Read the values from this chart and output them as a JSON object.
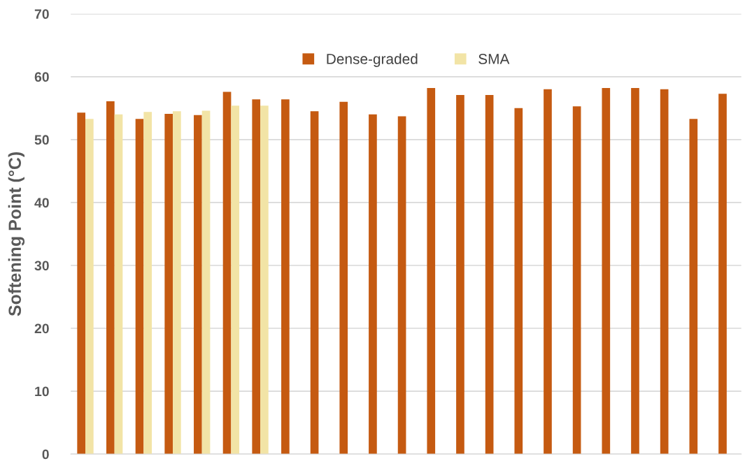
{
  "chart_data": {
    "type": "bar",
    "ylabel": "Softening Point (°C)",
    "categories": [
      null,
      null,
      null,
      null,
      null,
      null,
      null,
      null,
      null,
      null,
      null,
      null,
      null,
      null,
      null,
      null,
      null,
      null,
      null,
      null,
      null,
      null,
      null
    ],
    "series": [
      {
        "name": "Dense-graded",
        "color": "#c55a11",
        "values": [
          54.3,
          56.1,
          53.3,
          54.1,
          53.9,
          57.6,
          56.4,
          56.4,
          54.5,
          56.0,
          54.0,
          53.7,
          58.2,
          57.1,
          57.1,
          55.0,
          58.0,
          55.3,
          58.2,
          58.2,
          58.0,
          53.3,
          57.3
        ]
      },
      {
        "name": "SMA",
        "color": "#f2e4a6",
        "values": [
          53.3,
          54.0,
          54.4,
          54.5,
          54.6,
          55.4,
          55.4,
          null,
          null,
          null,
          null,
          null,
          null,
          null,
          null,
          null,
          null,
          null,
          null,
          null,
          null,
          null,
          null
        ]
      }
    ],
    "ylim": [
      0,
      70
    ],
    "yticks": [
      0,
      10,
      20,
      30,
      40,
      50,
      60,
      70
    ],
    "grid": "y",
    "legend": "top",
    "tick_labels": "y"
  }
}
